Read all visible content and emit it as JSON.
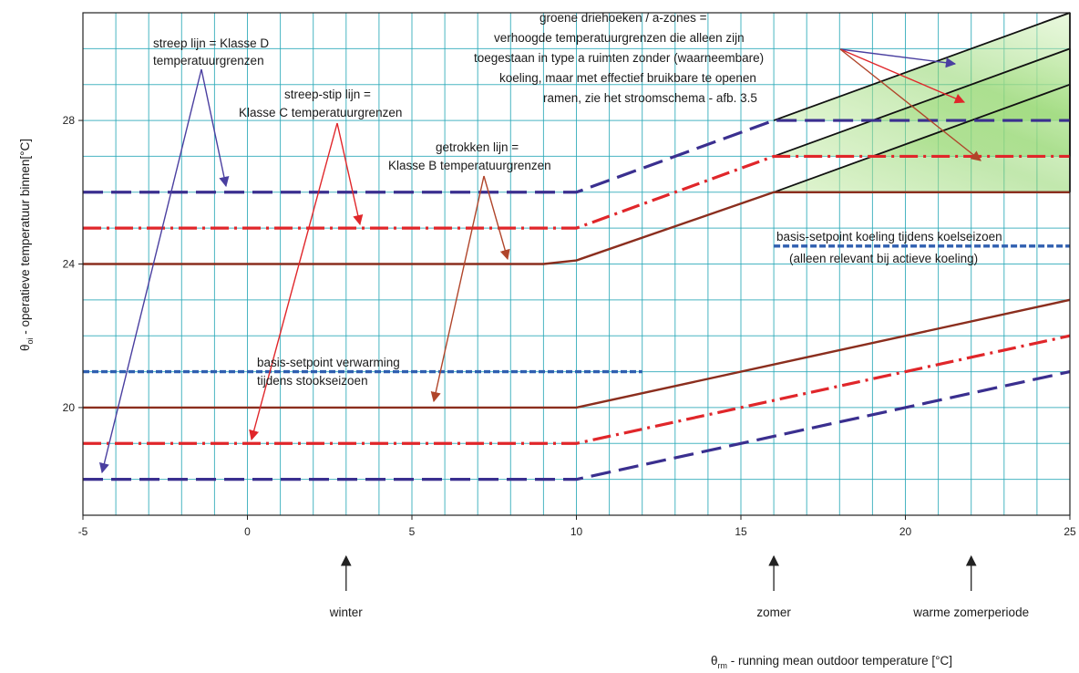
{
  "chart_data": {
    "type": "line",
    "xlim": [
      -5,
      25
    ],
    "ylim": [
      17,
      31
    ],
    "x_ticks": [
      -5,
      0,
      5,
      10,
      15,
      20,
      25
    ],
    "y_ticks": [
      20,
      24,
      28
    ],
    "grid": true,
    "xlabel": {
      "symbol": "θ",
      "subscript": "rm",
      "text": " - running mean outdoor temperature [°C]"
    },
    "ylabel": {
      "symbol": "θ",
      "subscript": "oi",
      "text": " - operatieve   temperatuur binnen[°C]"
    },
    "series": [
      {
        "key": "D_upper",
        "class": "D",
        "style": "dashed",
        "color": "#3a2f8f",
        "x": [
          -5,
          10,
          16,
          25
        ],
        "y": [
          26,
          26,
          28,
          28
        ]
      },
      {
        "key": "C_upper",
        "class": "C",
        "style": "dashdot",
        "color": "#e0262a",
        "x": [
          -5,
          10,
          16,
          25
        ],
        "y": [
          25,
          25,
          27,
          27
        ]
      },
      {
        "key": "B_upper",
        "class": "B",
        "style": "solid",
        "color": "#8b2e1e",
        "x": [
          -5,
          9,
          10,
          16,
          25
        ],
        "y": [
          24,
          24,
          24.1,
          26,
          26
        ]
      },
      {
        "key": "B_lower",
        "class": "B",
        "style": "solid",
        "color": "#8b2e1e",
        "x": [
          -5,
          10,
          25
        ],
        "y": [
          20,
          20,
          23
        ]
      },
      {
        "key": "C_lower",
        "class": "C",
        "style": "dashdot",
        "color": "#e0262a",
        "x": [
          -5,
          10,
          25
        ],
        "y": [
          19,
          19,
          22
        ]
      },
      {
        "key": "D_lower",
        "class": "D",
        "style": "dashed",
        "color": "#3a2f8f",
        "x": [
          -5,
          10,
          25
        ],
        "y": [
          18,
          18,
          21
        ]
      },
      {
        "key": "heating_setpoint",
        "style": "dotted",
        "color": "#2f5fb0",
        "x": [
          -5,
          12
        ],
        "y": [
          21,
          21
        ]
      },
      {
        "key": "cooling_setpoint",
        "style": "dotted",
        "color": "#2f5fb0",
        "x": [
          16,
          25
        ],
        "y": [
          24.5,
          24.5
        ]
      }
    ],
    "a_zones": [
      {
        "key": "zone_B",
        "x": [
          16,
          25
        ],
        "y_base": 26,
        "y_top": [
          26,
          29
        ]
      },
      {
        "key": "zone_C",
        "x": [
          16,
          25
        ],
        "y_base": 27,
        "y_top": [
          27,
          30
        ]
      },
      {
        "key": "zone_D",
        "x": [
          16,
          25
        ],
        "y_base": 28,
        "y_top": [
          28,
          31
        ]
      }
    ],
    "annotations": [
      {
        "key": "class_d",
        "lines": [
          "streep lijn = Klasse D",
          "temperatuurgrenzen"
        ]
      },
      {
        "key": "class_c",
        "lines": [
          "streep-stip lijn =",
          "Klasse C temperatuurgrenzen"
        ]
      },
      {
        "key": "class_b",
        "lines": [
          "getrokken lijn =",
          "Klasse B temperatuurgrenzen"
        ]
      },
      {
        "key": "a_zones",
        "lines": [
          "groene driehoeken / a-zones =",
          "verhoogde temperatuurgrenzen die alleen zijn",
          "toegestaan in type a ruimten zonder (waarneembare)",
          "koeling, maar met effectief bruikbare te openen",
          "ramen, zie het stroomschema - afb. 3.5"
        ]
      },
      {
        "key": "cooling",
        "lines": [
          "basis-setpoint koeling tijdens koelseizoen",
          "(alleen relevant bij actieve koeling)"
        ]
      },
      {
        "key": "heating",
        "lines": [
          "basis-setpoint verwarming",
          "tijdens stookseizoen"
        ]
      }
    ],
    "markers": [
      {
        "label": "winter",
        "x": 3
      },
      {
        "label": "zomer",
        "x": 16
      },
      {
        "label": "warme zomerperiode",
        "x": 22
      }
    ]
  }
}
